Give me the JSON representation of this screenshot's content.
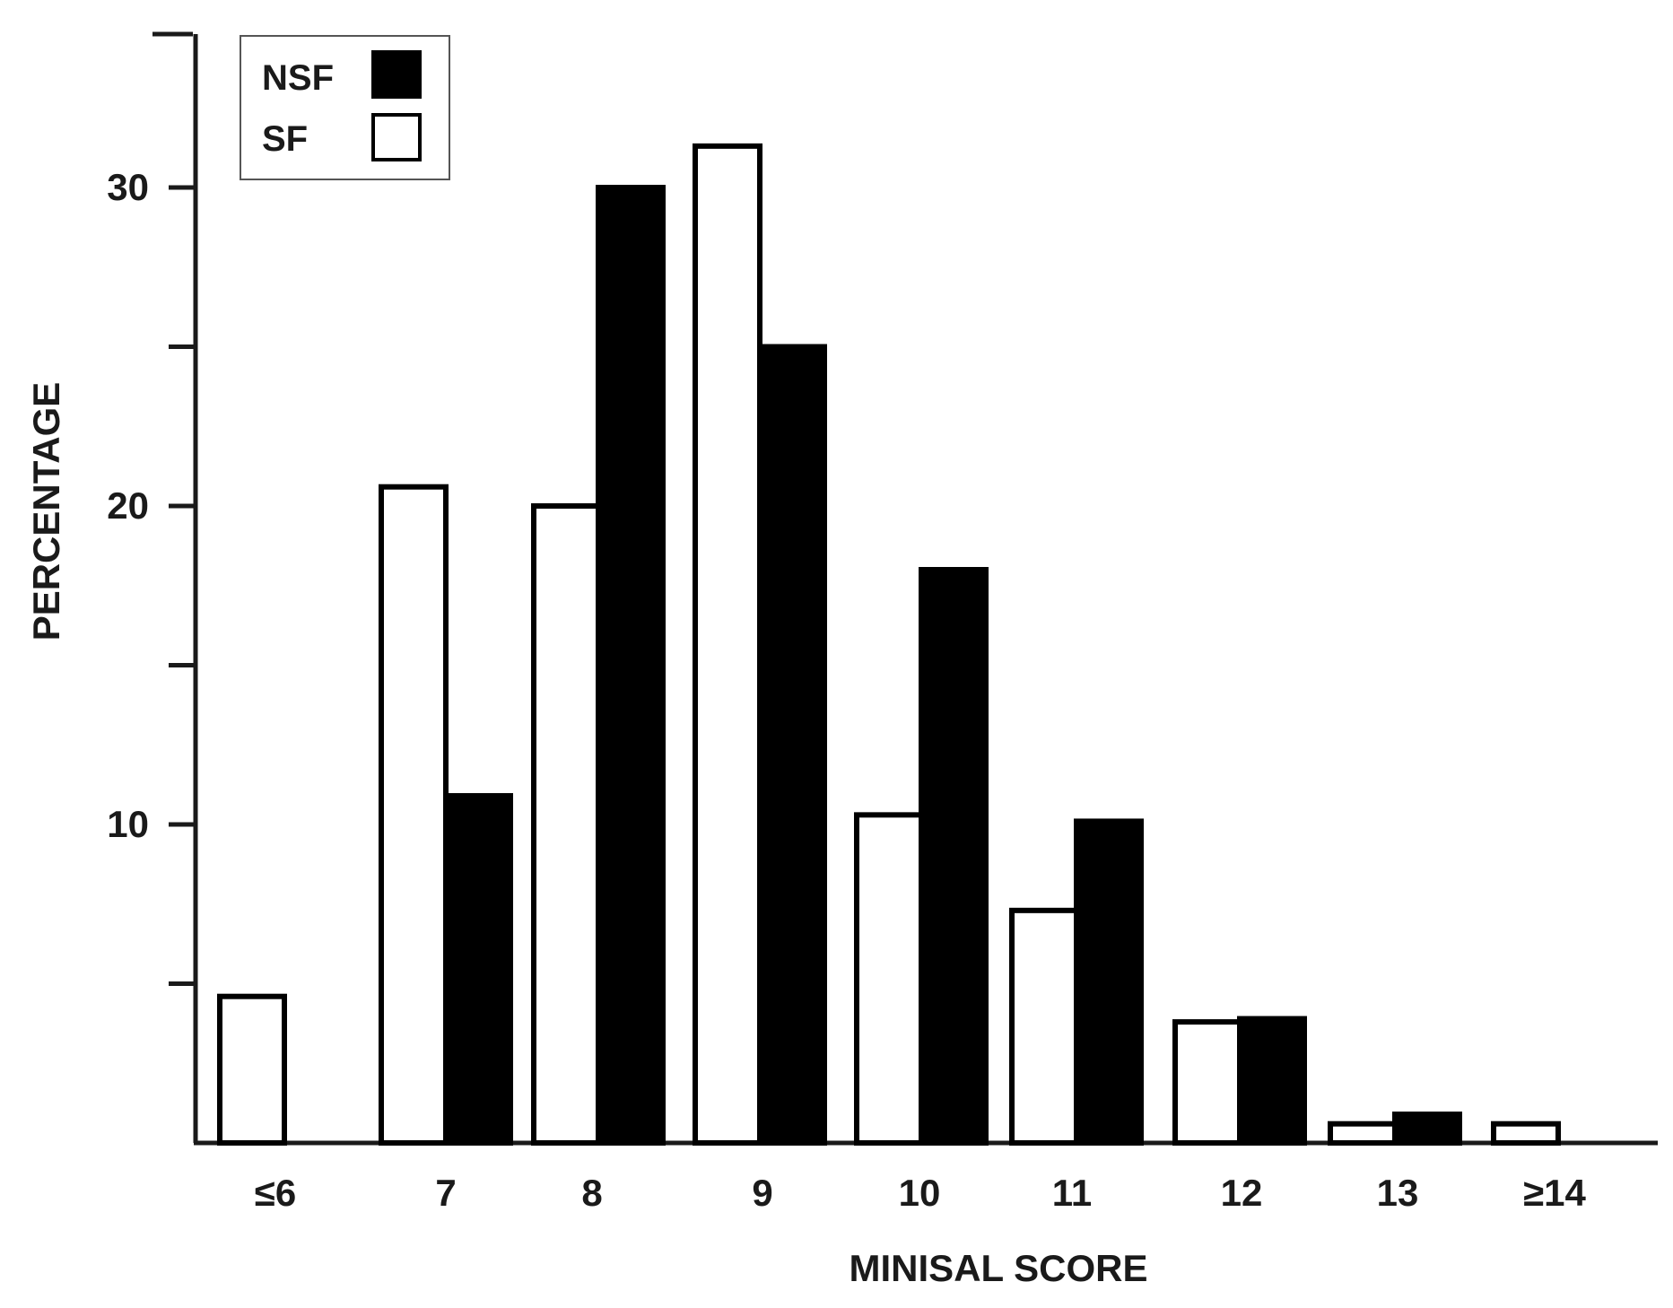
{
  "chart_data": {
    "type": "bar",
    "title": "",
    "xlabel": "MINISAL SCORE",
    "ylabel": "PERCENTAGE",
    "categories": [
      "≤6",
      "7",
      "8",
      "9",
      "10",
      "11",
      "12",
      "13",
      "≥14"
    ],
    "series": [
      {
        "name": "SF",
        "color": "#ffffff",
        "values": [
          4.6,
          20.6,
          20.0,
          31.3,
          10.3,
          7.3,
          3.8,
          0.6,
          0.6
        ]
      },
      {
        "name": "NSF",
        "color": "#000000",
        "values": [
          0,
          10.9,
          30.0,
          25.0,
          18.0,
          10.1,
          3.9,
          0.9,
          0
        ]
      }
    ],
    "yticks": [
      10,
      20,
      30
    ],
    "ylim": [
      0,
      35
    ],
    "legend": {
      "position": "top-left",
      "entries": [
        "NSF",
        "SF"
      ]
    },
    "grid": false
  }
}
